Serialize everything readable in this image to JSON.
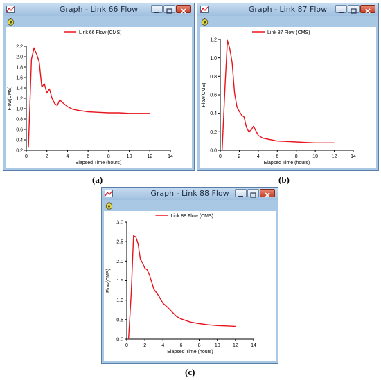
{
  "windows": [
    {
      "title": "Graph - Link 66 Flow",
      "caption": "(a)",
      "legend": "Link 66 Flow (CMS)",
      "chart_data": {
        "type": "line",
        "xlabel": "Elapsed Time (hours)",
        "ylabel": "Flow(CMS)",
        "xlim": [
          0,
          14
        ],
        "ylim": [
          0.2,
          2.2
        ],
        "xticks": [
          0,
          2,
          4,
          6,
          8,
          10,
          12,
          14
        ],
        "yticks": [
          0.2,
          0.4,
          0.6,
          0.8,
          1.0,
          1.2,
          1.4,
          1.6,
          1.8,
          2.0,
          2.2
        ],
        "ytick_labels": [
          "0.2",
          "0.4",
          "0.6",
          "0.8",
          "1.0",
          "1.2",
          "1.4",
          "1.6",
          "1.8",
          "2.0",
          "2.2"
        ],
        "grid": false,
        "series": [
          {
            "name": "Link 66 Flow (CMS)",
            "color": "#e8141c",
            "x": [
              0.2,
              0.5,
              0.75,
              1.0,
              1.25,
              1.5,
              1.75,
              2.0,
              2.25,
              2.5,
              2.75,
              3.0,
              3.25,
              3.5,
              4.0,
              4.5,
              5.0,
              6.0,
              7.0,
              8.0,
              9.0,
              10.0,
              11.0,
              12.0
            ],
            "y": [
              0.25,
              1.95,
              2.17,
              2.05,
              1.9,
              1.42,
              1.48,
              1.3,
              1.38,
              1.2,
              1.1,
              1.06,
              1.17,
              1.12,
              1.04,
              0.99,
              0.97,
              0.94,
              0.93,
              0.92,
              0.92,
              0.91,
              0.91,
              0.91
            ]
          }
        ]
      }
    },
    {
      "title": "Graph - Link 87 Flow",
      "caption": "(b)",
      "legend": "Link 87 Flow (CMS)",
      "chart_data": {
        "type": "line",
        "xlabel": "Elapsed Time (hours)",
        "ylabel": "Flow(CMS)",
        "xlim": [
          0,
          14
        ],
        "ylim": [
          0,
          1.2
        ],
        "xticks": [
          0,
          2,
          4,
          6,
          8,
          10,
          12,
          14
        ],
        "yticks": [
          0,
          0.2,
          0.4,
          0.6,
          0.8,
          1.0,
          1.2
        ],
        "ytick_labels": [
          "0.0",
          "0.2",
          "0.4",
          "0.6",
          "0.8",
          "1.0",
          "1.2"
        ],
        "grid": false,
        "series": [
          {
            "name": "Link 87 Flow (CMS)",
            "color": "#e8141c",
            "x": [
              0.2,
              0.5,
              0.75,
              1.0,
              1.25,
              1.5,
              1.75,
              2.0,
              2.25,
              2.5,
              2.75,
              3.0,
              3.25,
              3.5,
              3.75,
              4.0,
              4.5,
              5.0,
              6.0,
              7.0,
              8.0,
              9.0,
              10.0,
              11.0,
              12.0
            ],
            "y": [
              0.0,
              0.7,
              1.19,
              1.1,
              0.95,
              0.62,
              0.47,
              0.42,
              0.38,
              0.36,
              0.25,
              0.2,
              0.22,
              0.26,
              0.21,
              0.16,
              0.13,
              0.12,
              0.1,
              0.095,
              0.09,
              0.085,
              0.08,
              0.08,
              0.08
            ]
          }
        ]
      }
    },
    {
      "title": "Graph - Link 88 Flow",
      "caption": "(c)",
      "legend": "Link 88 Flow (CMS)",
      "chart_data": {
        "type": "line",
        "xlabel": "Elapsed Time (hours)",
        "ylabel": "Flow(CMS)",
        "xlim": [
          0,
          14
        ],
        "ylim": [
          0,
          3.0
        ],
        "xticks": [
          0,
          2,
          4,
          6,
          8,
          10,
          12,
          14
        ],
        "yticks": [
          0,
          0.5,
          1.0,
          1.5,
          2.0,
          2.5,
          3.0
        ],
        "ytick_labels": [
          "0.0",
          "0.5",
          "1.0",
          "1.5",
          "2.0",
          "2.5",
          "3.0"
        ],
        "grid": false,
        "series": [
          {
            "name": "Link 88 Flow (CMS)",
            "color": "#e8141c",
            "x": [
              0.2,
              0.5,
              0.75,
              1.0,
              1.25,
              1.5,
              1.75,
              2.0,
              2.25,
              2.5,
              3.0,
              3.5,
              4.0,
              4.5,
              5.0,
              5.5,
              6.0,
              7.0,
              8.0,
              9.0,
              10.0,
              11.0,
              12.0
            ],
            "y": [
              0.0,
              1.2,
              2.65,
              2.62,
              2.45,
              2.05,
              1.95,
              1.82,
              1.78,
              1.65,
              1.28,
              1.12,
              0.92,
              0.82,
              0.7,
              0.58,
              0.52,
              0.44,
              0.4,
              0.37,
              0.35,
              0.34,
              0.33
            ]
          }
        ]
      }
    }
  ]
}
